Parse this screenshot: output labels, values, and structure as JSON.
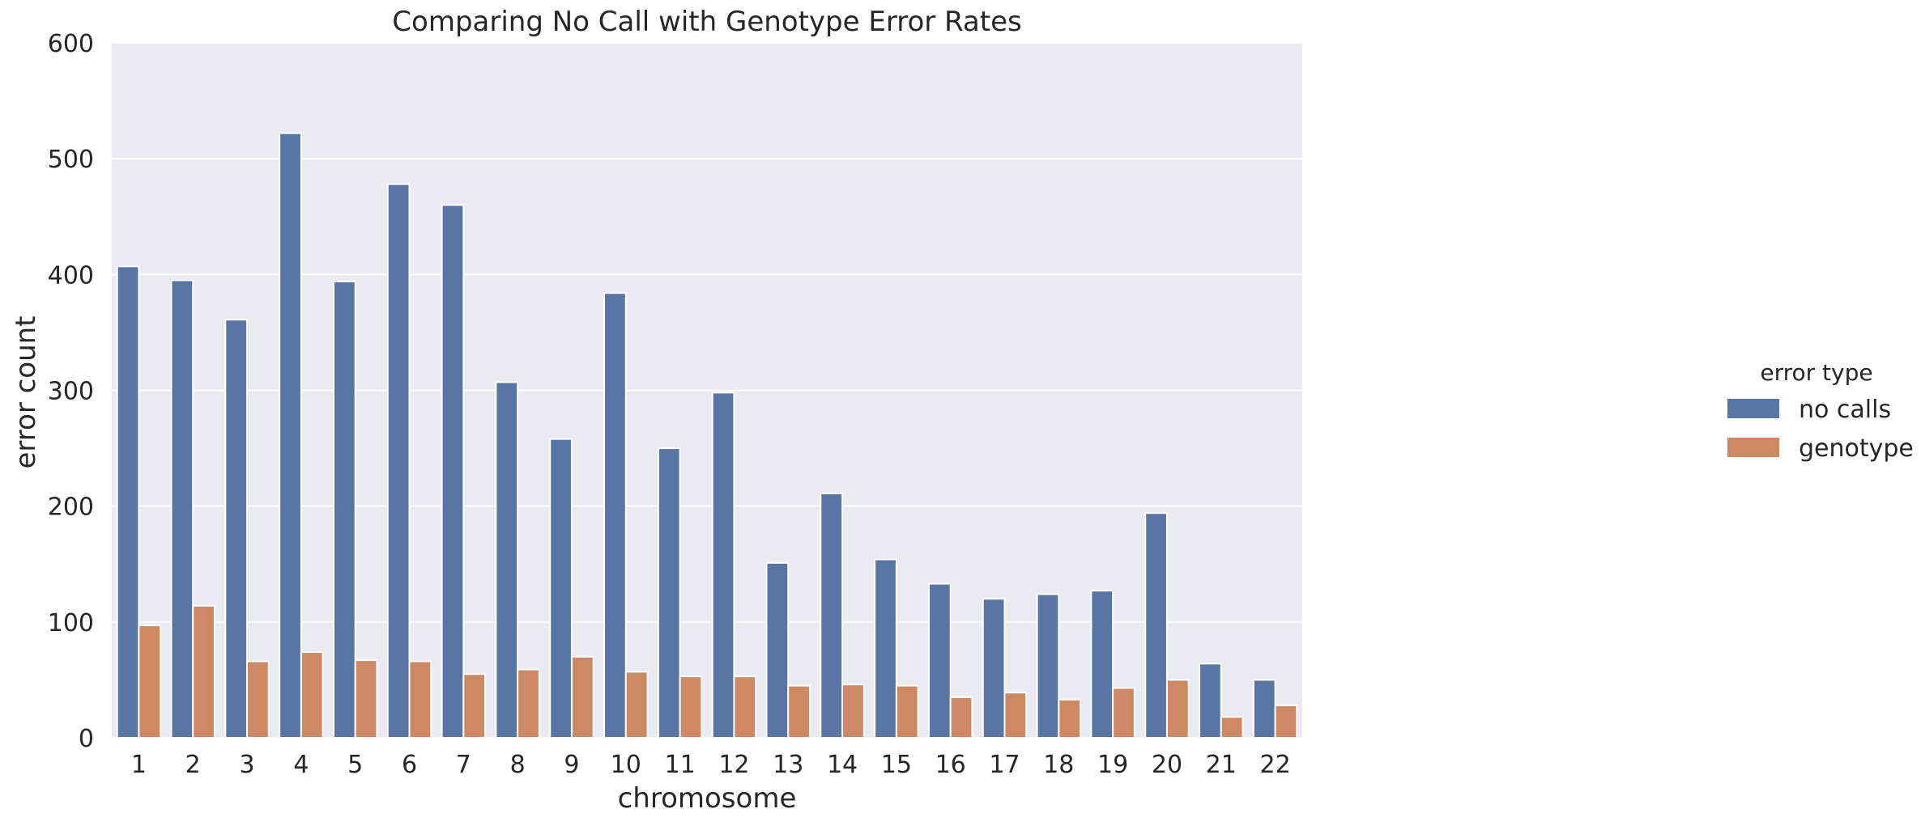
{
  "chart_data": {
    "type": "bar",
    "title": "Comparing No Call with Genotype Error Rates",
    "xlabel": "chromosome",
    "ylabel": "error count",
    "ylim": [
      0,
      600
    ],
    "yticks": [
      0,
      100,
      200,
      300,
      400,
      500,
      600
    ],
    "grid": true,
    "legend_position": "right",
    "categories": [
      "1",
      "2",
      "3",
      "4",
      "5",
      "6",
      "7",
      "8",
      "9",
      "10",
      "11",
      "12",
      "13",
      "14",
      "15",
      "16",
      "17",
      "18",
      "19",
      "20",
      "21",
      "22"
    ],
    "legend_title": "error type",
    "series": [
      {
        "name": "no calls",
        "color": "#5975a4",
        "values": [
          407,
          395,
          361,
          522,
          394,
          478,
          460,
          307,
          258,
          384,
          250,
          298,
          151,
          211,
          154,
          133,
          120,
          124,
          127,
          194,
          64,
          50
        ]
      },
      {
        "name": "genotype",
        "color": "#cc8963",
        "values": [
          97,
          114,
          66,
          74,
          67,
          66,
          55,
          59,
          70,
          57,
          53,
          53,
          45,
          46,
          45,
          35,
          39,
          33,
          43,
          50,
          18,
          28
        ]
      }
    ],
    "plot_background": "#eaeaf2",
    "grid_color": "#ffffff"
  }
}
